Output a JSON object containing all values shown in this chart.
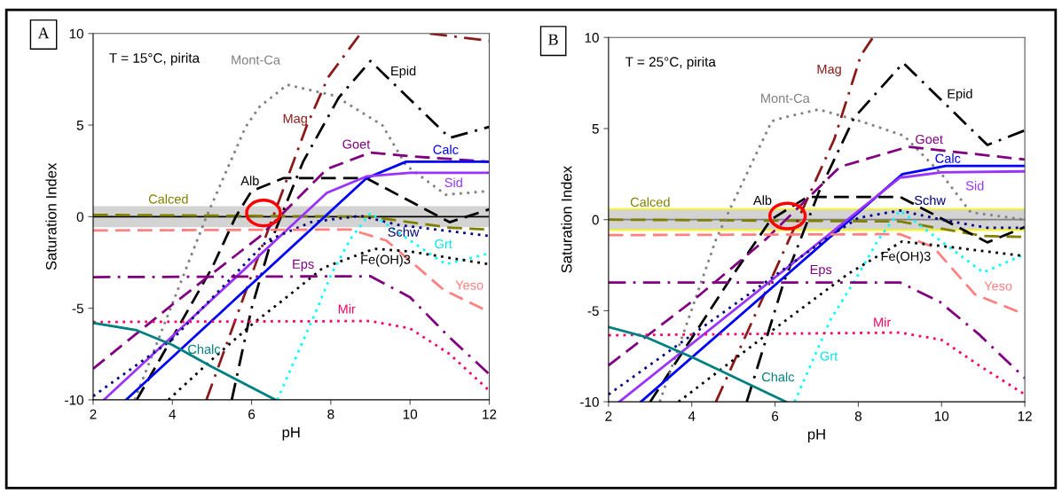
{
  "chart_data": [
    {
      "type": "line",
      "title": "A",
      "xlabel": "pH",
      "ylabel": "Saturation Index",
      "xlim": [
        2,
        12
      ],
      "ylim": [
        -10,
        10
      ],
      "xticks": [
        2,
        4,
        6,
        8,
        10,
        12
      ],
      "yticks": [
        -10,
        -5,
        0,
        5,
        10
      ],
      "grid": false,
      "bands": [
        {
          "axis": "y",
          "from": -0.58,
          "to": 0.58,
          "color": "#d3d3d3"
        }
      ],
      "ref_lines": [
        {
          "axis": "y",
          "value": 0,
          "color": "#000000",
          "line_style": "solid"
        }
      ],
      "series": [
        {
          "name": "Calced",
          "color": "#808000",
          "line_style": "dashed",
          "x": [
            2,
            9,
            10,
            11,
            12
          ],
          "values": [
            0.1,
            0.0,
            -0.3,
            -0.6,
            -0.7
          ]
        },
        {
          "name": "Alb",
          "color": "#000000",
          "line_style": "dashed",
          "x": [
            3.1,
            4,
            5,
            5.6,
            6,
            6.8,
            8.9,
            11,
            12
          ],
          "values": [
            -10,
            -6.6,
            -2.8,
            0,
            1.4,
            2.1,
            2.1,
            -0.3,
            0.4
          ]
        },
        {
          "name": "Mont-Ca",
          "color": "#808080",
          "line_style": "dotted",
          "x": [
            3.05,
            4.86,
            5.85,
            6.2,
            6.9,
            8.1,
            9.3,
            9.9,
            10.9,
            12
          ],
          "values": [
            -10,
            0,
            4.9,
            6.0,
            7.2,
            6.6,
            5.0,
            2.8,
            1.2,
            1.4
          ]
        },
        {
          "name": "Mag",
          "color": "#8b1a1a",
          "line_style": "dashdot",
          "x": [
            4.86,
            6.2,
            7.4,
            7.93,
            8.75,
            9.6,
            10.5,
            12
          ],
          "values": [
            -10,
            -2,
            5,
            7.6,
            10,
            null,
            10,
            9.6
          ]
        },
        {
          "name": "Epid",
          "color": "#000000",
          "line_style": "dashdot",
          "x": [
            5.5,
            6,
            6.5,
            7.3,
            8.2,
            9,
            11,
            12
          ],
          "values": [
            -10,
            -5,
            -1.3,
            3,
            6.5,
            8.5,
            4.3,
            4.9
          ]
        },
        {
          "name": "Goet",
          "color": "#800080",
          "line_style": "dashed",
          "x": [
            2,
            4,
            6.2,
            7.9,
            9,
            10,
            12
          ],
          "values": [
            -8.3,
            -4.8,
            -1.1,
            2.6,
            3.5,
            3.3,
            3.0
          ]
        },
        {
          "name": "Calc",
          "color": "#0000ff",
          "line_style": "solid",
          "x": [
            2.83,
            8.9,
            9.9,
            12
          ],
          "values": [
            -10,
            2.1,
            3.0,
            3.0
          ]
        },
        {
          "name": "Sid",
          "color": "#9933ff",
          "line_style": "solid",
          "x": [
            2.27,
            7.9,
            8.9,
            10,
            12
          ],
          "values": [
            -10,
            1.3,
            2.2,
            2.4,
            2.4
          ]
        },
        {
          "name": "Schw",
          "color": "#000080",
          "line_style": "dotted",
          "x": [
            2,
            4,
            6.4,
            7.5,
            8.75,
            9.7,
            12
          ],
          "values": [
            -9.8,
            -6.7,
            -1.3,
            -0.3,
            0.05,
            -0.45,
            -1.05
          ]
        },
        {
          "name": "Yeso",
          "color": "#ff8080",
          "line_style": "dashed",
          "x": [
            2,
            8.5,
            9.4,
            10,
            10.85,
            12
          ],
          "values": [
            -0.75,
            -0.7,
            -1.3,
            -2.4,
            -4.0,
            -5.2
          ]
        },
        {
          "name": "Grt",
          "color": "#00ffff",
          "line_style": "dotted",
          "x": [
            6.65,
            7.66,
            8,
            8.5,
            9,
            10,
            10.9,
            12
          ],
          "values": [
            -10,
            -5,
            -3.2,
            -1.2,
            0.2,
            -1.3,
            -2.6,
            -2.0
          ]
        },
        {
          "name": "Fe(OH)3",
          "color": "#000000",
          "line_style": "dotted",
          "x": [
            3.9,
            5,
            6,
            7,
            7.8,
            9.1,
            10,
            12
          ],
          "values": [
            -10,
            -7.8,
            -5.9,
            -4.2,
            -2.8,
            -1.75,
            -1.9,
            -2.6
          ]
        },
        {
          "name": "Eps",
          "color": "#800080",
          "line_style": "dashdot",
          "x": [
            2,
            9,
            10,
            11,
            12
          ],
          "values": [
            -3.3,
            -3.25,
            -4.4,
            -6.6,
            -8.6
          ]
        },
        {
          "name": "Mir",
          "color": "#ff0066",
          "line_style": "dotted",
          "x": [
            2,
            9,
            10,
            11,
            12
          ],
          "values": [
            -5.75,
            -5.7,
            -6.1,
            -7.5,
            -9.5
          ]
        },
        {
          "name": "Chalc",
          "color": "#008080",
          "line_style": "solid",
          "x": [
            2,
            3.1,
            4,
            5,
            6.6
          ],
          "values": [
            -5.8,
            -6.2,
            -7.0,
            -8.2,
            -10
          ]
        }
      ],
      "annotations": [
        "T = 15°C, pirita"
      ]
    },
    {
      "type": "line",
      "title": "B",
      "xlabel": "pH",
      "ylabel": "Saturation Index",
      "xlim": [
        2,
        12
      ],
      "ylim": [
        -10,
        10
      ],
      "xticks": [
        2,
        4,
        6,
        8,
        10,
        12
      ],
      "yticks": [
        -10,
        -5,
        0,
        5,
        10
      ],
      "grid": false,
      "bands": [
        {
          "axis": "y",
          "from": -0.58,
          "to": 0.58,
          "color": "#d3d3d3"
        }
      ],
      "ref_lines": [
        {
          "axis": "y",
          "value": 0,
          "color": "#808080",
          "line_style": "solid"
        },
        {
          "axis": "y",
          "value": 0.58,
          "color": "#ffff00",
          "line_style": "solid"
        },
        {
          "axis": "y",
          "value": -0.58,
          "color": "#ffff00",
          "line_style": "solid"
        }
      ],
      "series": [
        {
          "name": "Calced",
          "color": "#808000",
          "line_style": "dashed",
          "x": [
            2,
            9,
            10,
            11,
            12
          ],
          "values": [
            0,
            -0.1,
            -0.5,
            -0.9,
            -0.95
          ]
        },
        {
          "name": "Alb",
          "color": "#000000",
          "line_style": "dashed",
          "x": [
            3.0,
            4,
            5,
            5.9,
            6.78,
            9,
            11.1,
            12
          ],
          "values": [
            -10,
            -6.5,
            -3,
            0,
            1.25,
            1.25,
            -1.25,
            -0.4
          ]
        },
        {
          "name": "Mont-Ca",
          "color": "#808080",
          "line_style": "dotted",
          "x": [
            3.23,
            4.58,
            4.86,
            5.92,
            6.2,
            7.05,
            8.06,
            9.1,
            10,
            10.7,
            12
          ],
          "values": [
            -10,
            -1.1,
            0.3,
            5.4,
            5.6,
            6.05,
            5.4,
            4.6,
            2.5,
            0.4,
            0
          ]
        },
        {
          "name": "Mag",
          "color": "#8b1a1a",
          "line_style": "dashdot",
          "x": [
            4.58,
            7.42,
            8.06,
            8.35
          ],
          "values": [
            -10,
            4.4,
            9.0,
            10
          ]
        },
        {
          "name": "Epid",
          "color": "#000000",
          "line_style": "dashdot",
          "x": [
            5.32,
            6.2,
            7.05,
            7.9,
            9.08,
            11.1,
            12
          ],
          "values": [
            -10,
            -3.5,
            1.5,
            5.6,
            8.6,
            4.1,
            4.9
          ]
        },
        {
          "name": "Goet",
          "color": "#800080",
          "line_style": "dashed",
          "x": [
            2,
            4,
            5.77,
            7.56,
            9.2,
            12
          ],
          "values": [
            -8.0,
            -4.5,
            -1.1,
            2.9,
            4.0,
            3.3
          ]
        },
        {
          "name": "Calc",
          "color": "#0000ff",
          "line_style": "solid",
          "x": [
            2.78,
            9.06,
            10.1,
            12
          ],
          "values": [
            -10,
            2.5,
            2.95,
            2.95
          ]
        },
        {
          "name": "Sid",
          "color": "#9933ff",
          "line_style": "solid",
          "x": [
            2.26,
            9,
            10,
            12
          ],
          "values": [
            -10,
            2.3,
            2.6,
            2.65
          ]
        },
        {
          "name": "Schw",
          "color": "#000080",
          "line_style": "dotted",
          "x": [
            2,
            7.2,
            8,
            9,
            10,
            11.1,
            12
          ],
          "values": [
            -9.6,
            -1.1,
            0.1,
            0.5,
            0,
            -0.45,
            -0.45
          ]
        },
        {
          "name": "Yeso",
          "color": "#ff8080",
          "line_style": "dashed",
          "x": [
            2,
            9,
            9.8,
            10.8,
            12
          ],
          "values": [
            -0.85,
            -0.8,
            -1.5,
            -4.1,
            -5.2
          ]
        },
        {
          "name": "Grt",
          "color": "#00ffff",
          "line_style": "dotted",
          "x": [
            6.47,
            7.33,
            7.94,
            8.48,
            9,
            10,
            11,
            12
          ],
          "values": [
            -10,
            -5.5,
            -3.25,
            -1.1,
            0.5,
            -1.2,
            -2.9,
            -1.9
          ]
        },
        {
          "name": "Fe(OH)3",
          "color": "#000000",
          "line_style": "dotted",
          "x": [
            3.68,
            5.69,
            7.74,
            9.05,
            10.2,
            12
          ],
          "values": [
            -10,
            -6.5,
            -3.0,
            -1.2,
            -1.5,
            -2.0
          ]
        },
        {
          "name": "Eps",
          "color": "#800080",
          "line_style": "dashdot",
          "x": [
            2,
            9,
            9.95,
            10.9,
            12
          ],
          "values": [
            -3.45,
            -3.45,
            -4.5,
            -6.3,
            -8.7
          ]
        },
        {
          "name": "Mir",
          "color": "#ff0066",
          "line_style": "dotted",
          "x": [
            2,
            9,
            10,
            10.9,
            12
          ],
          "values": [
            -6.35,
            -6.2,
            -6.6,
            -8.0,
            -9.6
          ]
        },
        {
          "name": "Chalc",
          "color": "#008080",
          "line_style": "solid",
          "x": [
            2,
            2.9,
            4.05,
            6.26
          ],
          "values": [
            -5.9,
            -6.45,
            -7.6,
            -10
          ]
        }
      ],
      "annotations": [
        "T = 25°C, pirita"
      ]
    }
  ]
}
